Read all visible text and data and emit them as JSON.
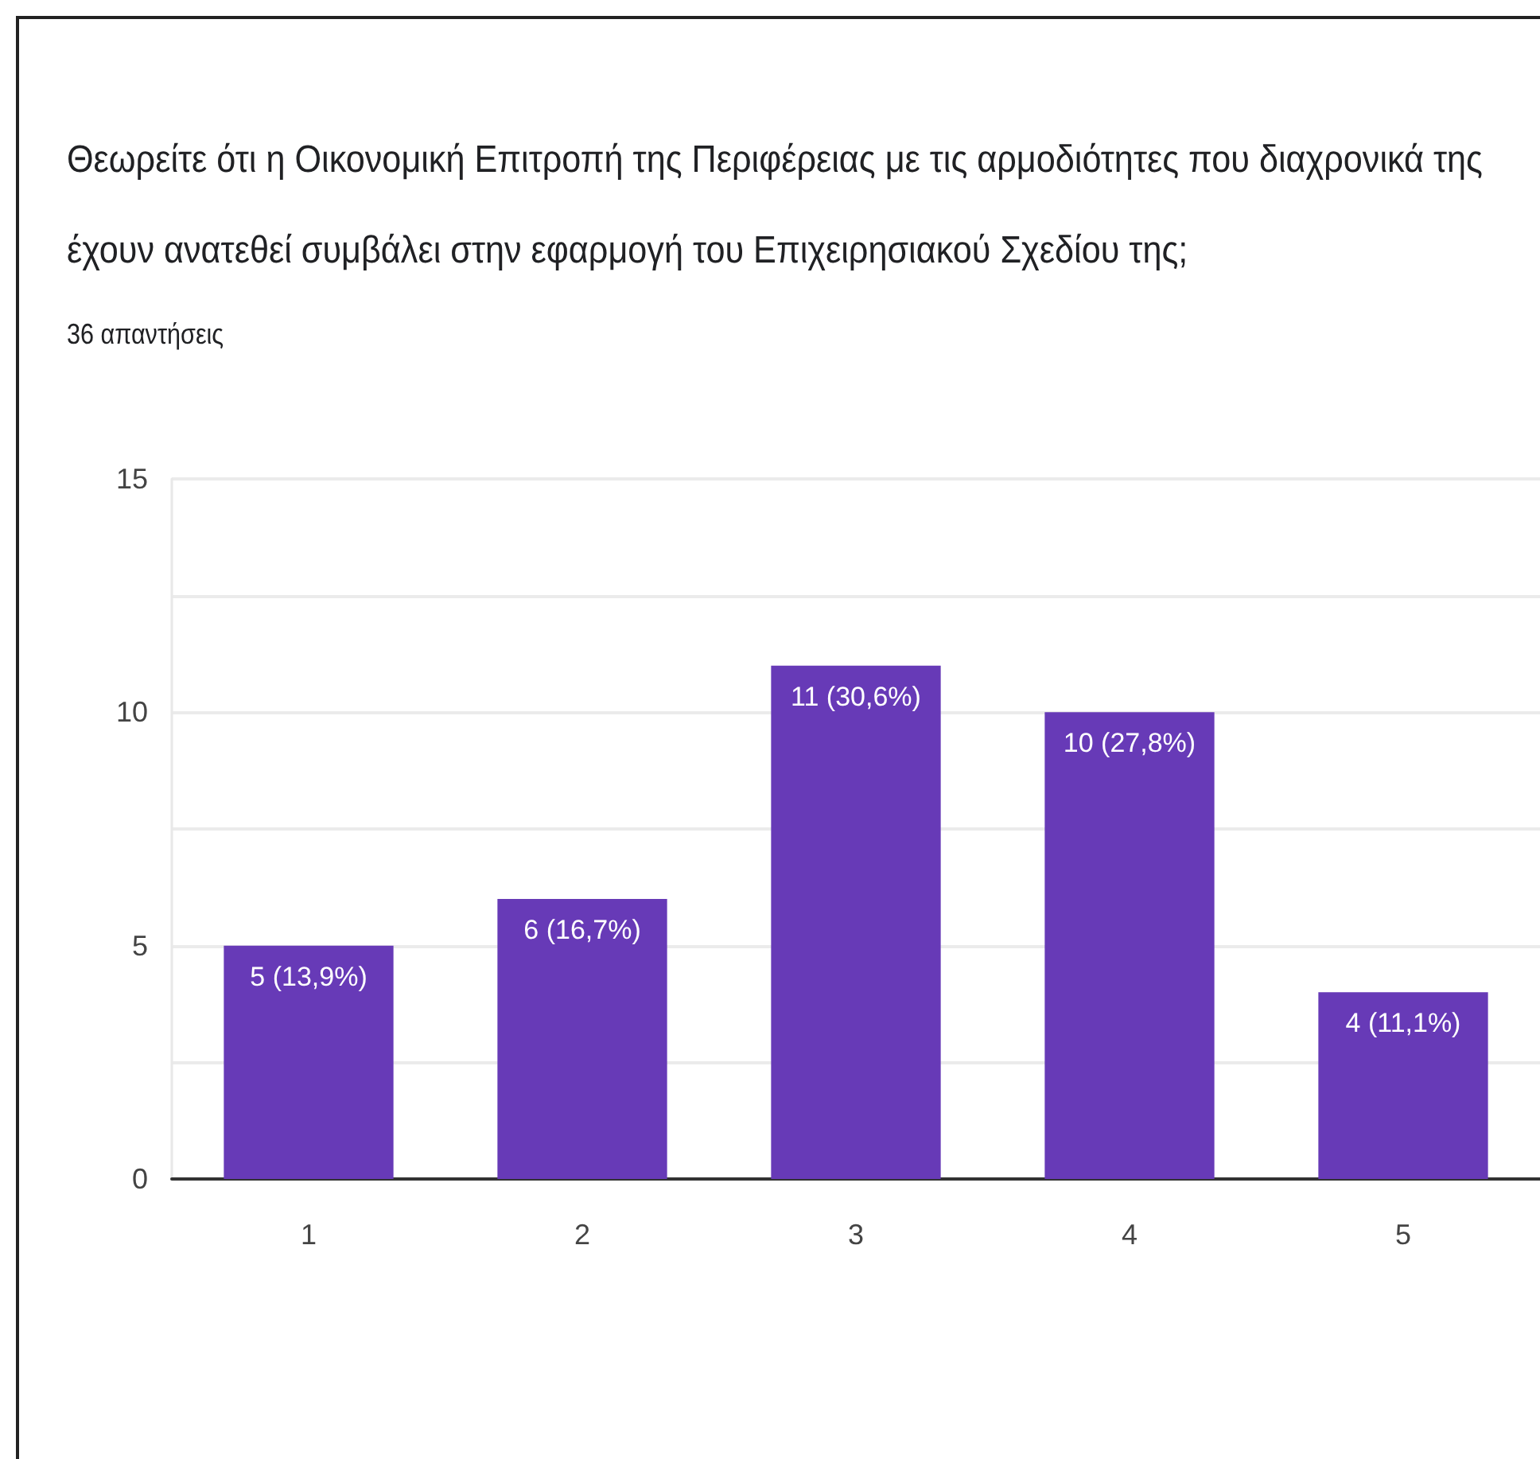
{
  "chart_data": {
    "type": "bar",
    "title": "Θεωρείτε ότι η Οικονομική Επιτροπή της Περιφέρειας με τις αρμοδιότητες που διαχρονικά της έχουν ανατεθεί συμβάλει στην εφαρμογή του Επιχειρησιακού Σχεδίου της;",
    "subtitle": "36 απαντήσεις",
    "categories": [
      "1",
      "2",
      "3",
      "4",
      "5"
    ],
    "values": [
      5,
      6,
      11,
      10,
      4
    ],
    "value_labels": [
      "5 (13,9%)",
      "6 (16,7%)",
      "11 (30,6%)",
      "10 (27,8%)",
      "4 (11,1%)"
    ],
    "color": "#673ab7",
    "ylim": [
      0,
      15
    ],
    "yticks": [
      0,
      {
        "value": 2.5,
        "label": null
      },
      5,
      {
        "value": 7.5,
        "label": null
      },
      10,
      {
        "value": 12.5,
        "label": null
      },
      15
    ],
    "grid": "y"
  }
}
